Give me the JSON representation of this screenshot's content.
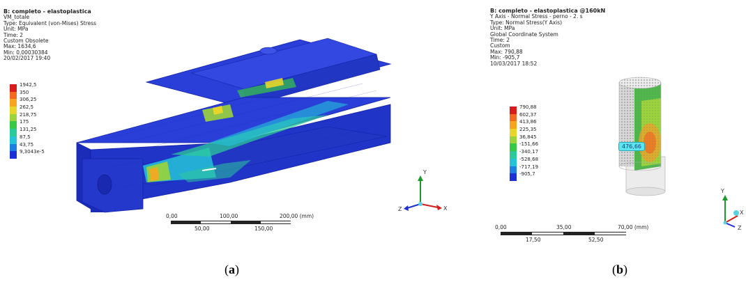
{
  "panel_a": {
    "title": "B: completo - elastoplastica",
    "info_lines": [
      "VM_totale",
      "Type: Equivalent (von-Mises) Stress",
      "Unit: MPa",
      "Time: 2",
      "Custom Obsolete",
      "Max: 1634,6",
      "Min: 0,00030384",
      "20/02/2017 19:40"
    ],
    "legend": [
      {
        "label": "1942,5",
        "color": "#d81b1b"
      },
      {
        "label": "350",
        "color": "#f26a1f"
      },
      {
        "label": "306,25",
        "color": "#f7a51e"
      },
      {
        "label": "262,5",
        "color": "#e8d52a"
      },
      {
        "label": "218,75",
        "color": "#9bd43a"
      },
      {
        "label": "175",
        "color": "#37c945"
      },
      {
        "label": "131,25",
        "color": "#2cc99a"
      },
      {
        "label": "87,5",
        "color": "#25c3d8"
      },
      {
        "label": "43,75",
        "color": "#1f7fe0"
      },
      {
        "label": "9,3043e-5",
        "color": "#1a2fd6"
      }
    ],
    "scale_top": [
      "0,00",
      "100,00",
      "200,00 (mm)"
    ],
    "scale_bottom": [
      "50,00",
      "150,00"
    ],
    "axes": {
      "y": "Y",
      "x": "X",
      "z": "Z"
    },
    "caption_letter": "a"
  },
  "panel_b": {
    "title": "B: completo - elastoplastica @160kN",
    "info_lines": [
      "Y Axis - Normal Stress - perno - 2. s",
      "Type: Normal Stress(Y Axis)",
      "Unit: MPa",
      "Global Coordinate System",
      "Time: 2",
      "Custom",
      "Max: 790,88",
      "Min: -905,7",
      "10/03/2017 18:52"
    ],
    "legend": [
      {
        "label": "790,88",
        "color": "#d81b1b"
      },
      {
        "label": "602,37",
        "color": "#f26a1f"
      },
      {
        "label": "413,86",
        "color": "#f7a51e"
      },
      {
        "label": "225,35",
        "color": "#e8d52a"
      },
      {
        "label": "36,845",
        "color": "#9bd43a"
      },
      {
        "label": "-151,66",
        "color": "#37c945"
      },
      {
        "label": "-340,17",
        "color": "#2cc99a"
      },
      {
        "label": "-528,68",
        "color": "#25c3d8"
      },
      {
        "label": "-717,19",
        "color": "#1f7fe0"
      },
      {
        "label": "-905,7",
        "color": "#1a2fd6"
      }
    ],
    "probe_value": "476,66",
    "scale_top": [
      "0,00",
      "35,00",
      "70,00 (mm)"
    ],
    "scale_bottom": [
      "17,50",
      "52,50"
    ],
    "axes": {
      "y": "Y",
      "x": "X",
      "z": "Z"
    },
    "caption_letter": "b"
  }
}
